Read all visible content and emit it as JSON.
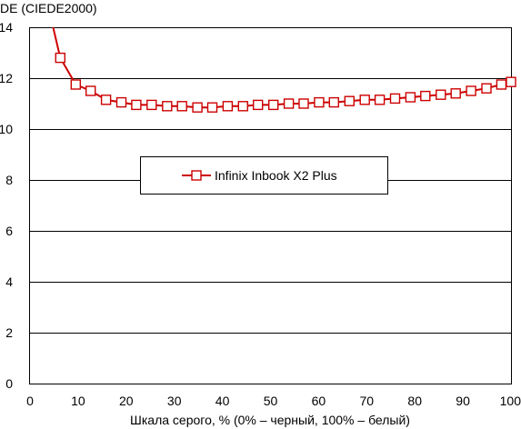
{
  "chart_data": {
    "type": "line",
    "title": "",
    "ylabel": "DE (CIEDE2000)",
    "xlabel": "Шкала серого, % (0% – черный, 100% – белый)",
    "xlim": [
      0,
      100
    ],
    "ylim": [
      0,
      14
    ],
    "xticks": [
      0,
      10,
      20,
      30,
      40,
      50,
      60,
      70,
      80,
      90,
      100
    ],
    "yticks": [
      0,
      2,
      4,
      6,
      8,
      10,
      12,
      14
    ],
    "grid": "horizontal",
    "legend_position": "center",
    "series": [
      {
        "name": "Infinix Inbook X2 Plus",
        "color": "#cc0000",
        "marker": "square-open",
        "x": [
          3.2,
          6.3,
          9.5,
          12.6,
          15.8,
          19.0,
          22.1,
          25.3,
          28.5,
          31.6,
          34.8,
          37.9,
          41.1,
          44.3,
          47.4,
          50.6,
          53.8,
          56.9,
          60.1,
          63.2,
          66.4,
          69.6,
          72.7,
          75.9,
          79.1,
          82.2,
          85.4,
          88.5,
          91.7,
          94.9,
          98.0,
          100
        ],
        "values": [
          15.3,
          12.8,
          11.75,
          11.5,
          11.15,
          11.05,
          10.95,
          10.95,
          10.9,
          10.9,
          10.85,
          10.85,
          10.9,
          10.9,
          10.95,
          10.95,
          11.0,
          11.0,
          11.05,
          11.05,
          11.1,
          11.15,
          11.15,
          11.2,
          11.25,
          11.3,
          11.35,
          11.4,
          11.5,
          11.6,
          11.75,
          11.85
        ],
        "marker_indices": [
          1,
          2,
          3,
          4,
          5,
          6,
          7,
          8,
          9,
          10,
          11,
          12,
          13,
          14,
          15,
          16,
          17,
          18,
          19,
          20,
          21,
          22,
          23,
          24,
          25,
          26,
          27,
          28,
          29,
          30,
          31
        ]
      }
    ]
  }
}
